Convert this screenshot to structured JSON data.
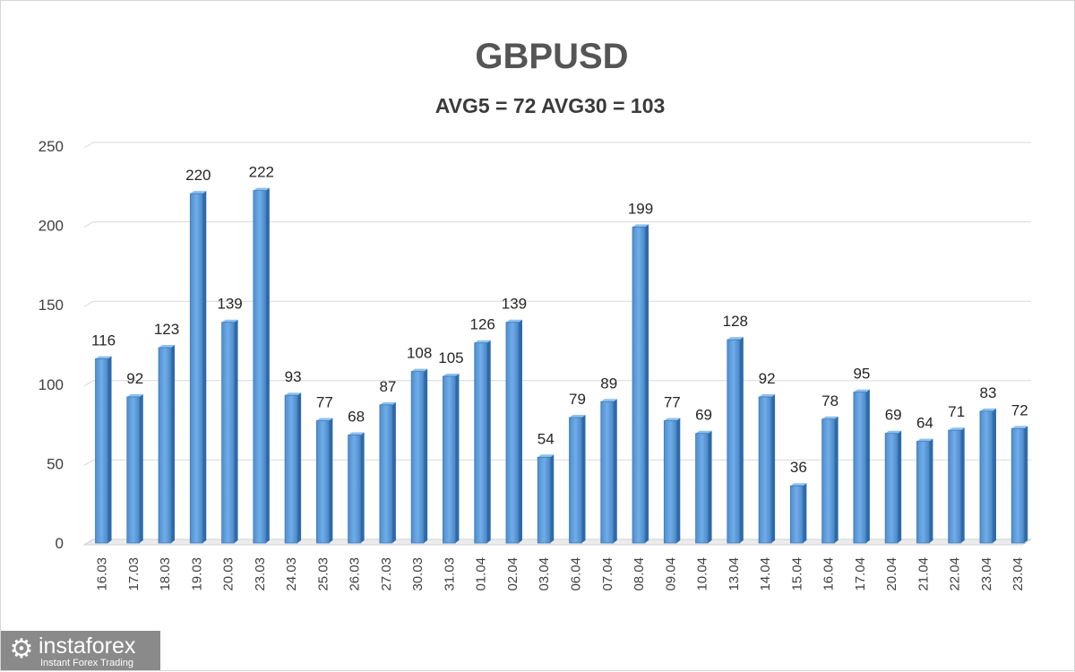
{
  "chart_data": {
    "type": "bar",
    "title": "GBPUSD",
    "subtitle": "AVG5 = 72 AVG30 = 103",
    "categories": [
      "16.03",
      "17.03",
      "18.03",
      "19.03",
      "20.03",
      "23.03",
      "24.03",
      "25.03",
      "26.03",
      "27.03",
      "30.03",
      "31.03",
      "01.04",
      "02.04",
      "03.04",
      "06.04",
      "07.04",
      "08.04",
      "09.04",
      "10.04",
      "13.04",
      "14.04",
      "15.04",
      "16.04",
      "17.04",
      "20.04",
      "21.04",
      "22.04",
      "23.04",
      "23.04"
    ],
    "values": [
      116,
      92,
      123,
      220,
      139,
      222,
      93,
      77,
      68,
      87,
      108,
      105,
      126,
      139,
      54,
      79,
      89,
      199,
      77,
      69,
      128,
      92,
      36,
      78,
      95,
      69,
      64,
      71,
      83,
      72
    ],
    "ylim": [
      0,
      250
    ],
    "yticks": [
      0,
      50,
      100,
      150,
      200,
      250
    ],
    "grid": true,
    "legend": "none",
    "bar_color": "#5b9bd5"
  },
  "logo": {
    "name": "instaforex",
    "tagline": "Instant Forex Trading",
    "icon": "gear-icon"
  }
}
